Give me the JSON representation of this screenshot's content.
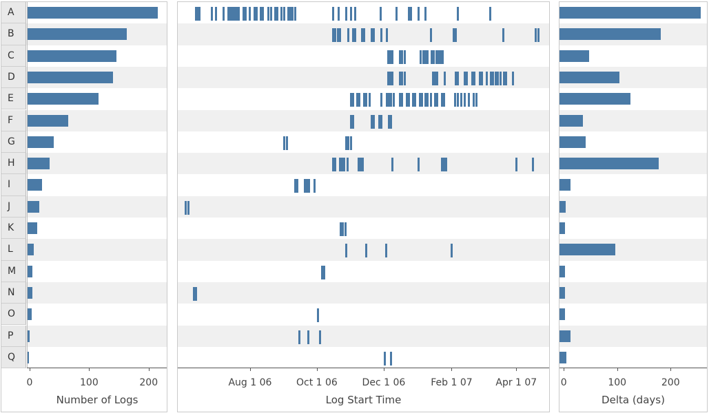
{
  "chart_data": [
    {
      "type": "bar",
      "orientation": "horizontal",
      "categories": [
        "A",
        "B",
        "C",
        "D",
        "E",
        "F",
        "G",
        "H",
        "I",
        "J",
        "K",
        "L",
        "M",
        "N",
        "O",
        "P",
        "Q"
      ],
      "values": [
        220,
        168,
        151,
        145,
        120,
        70,
        45,
        38,
        26,
        21,
        17,
        11,
        9,
        9,
        8,
        5,
        4
      ],
      "xlabel": "Number of Logs",
      "xlim": [
        0,
        235
      ],
      "ticks": [
        0,
        100,
        200
      ],
      "tick_labels": [
        "0",
        "100",
        "200"
      ]
    },
    {
      "type": "scatter",
      "mark": "tick",
      "categories": [
        "A",
        "B",
        "C",
        "D",
        "E",
        "F",
        "G",
        "H",
        "I",
        "J",
        "K",
        "L",
        "M",
        "N",
        "O",
        "P",
        "Q"
      ],
      "xlabel": "Log Start Time",
      "xlim": [
        "2006-05-27",
        "2007-05-01"
      ],
      "ticks": [
        "2006-08-01",
        "2006-10-01",
        "2006-12-01",
        "2007-02-01",
        "2007-04-01"
      ],
      "tick_labels": [
        "Aug 1 06",
        "Oct 1 06",
        "Dec 1 06",
        "Feb 1 07",
        "Apr 1 07"
      ],
      "series": [
        {
          "category": "A",
          "dates": [
            "2006-06-12",
            "2006-06-13",
            "2006-06-14",
            "2006-06-15",
            "2006-06-26",
            "2006-06-30",
            "2006-07-07",
            "2006-07-11",
            "2006-07-13",
            "2006-07-15",
            "2006-07-17",
            "2006-07-19",
            "2006-07-21",
            "2006-07-25",
            "2006-07-27",
            "2006-07-31",
            "2006-08-04",
            "2006-08-06",
            "2006-08-10",
            "2006-08-12",
            "2006-08-17",
            "2006-08-19",
            "2006-08-23",
            "2006-08-25",
            "2006-08-29",
            "2006-08-31",
            "2006-09-04",
            "2006-09-06",
            "2006-09-08",
            "2006-09-10",
            "2006-10-15",
            "2006-10-20",
            "2006-10-27",
            "2006-10-31",
            "2006-11-04",
            "2006-11-27",
            "2006-12-12",
            "2006-12-23",
            "2006-12-25",
            "2007-01-01",
            "2007-01-07",
            "2007-02-06",
            "2007-03-07"
          ]
        },
        {
          "category": "B",
          "dates": [
            "2006-10-15",
            "2006-10-17",
            "2006-10-19",
            "2006-10-21",
            "2006-10-29",
            "2006-11-02",
            "2006-11-04",
            "2006-11-10",
            "2006-11-12",
            "2006-11-19",
            "2006-11-21",
            "2006-11-28",
            "2006-12-03",
            "2007-01-12",
            "2007-02-02",
            "2007-02-04",
            "2007-03-19",
            "2007-04-18",
            "2007-04-20"
          ]
        },
        {
          "category": "C",
          "dates": [
            "2006-12-04",
            "2006-12-06",
            "2006-12-08",
            "2006-12-15",
            "2006-12-17",
            "2006-12-19",
            "2007-01-03",
            "2007-01-05",
            "2007-01-07",
            "2007-01-09",
            "2007-01-13",
            "2007-01-15",
            "2007-01-17",
            "2007-01-19",
            "2007-01-21",
            "2007-01-23"
          ]
        },
        {
          "category": "D",
          "dates": [
            "2006-12-04",
            "2006-12-06",
            "2006-12-08",
            "2006-12-15",
            "2006-12-17",
            "2006-12-19",
            "2007-01-14",
            "2007-01-16",
            "2007-01-18",
            "2007-01-25",
            "2007-02-04",
            "2007-02-06",
            "2007-02-12",
            "2007-02-14",
            "2007-02-19",
            "2007-02-21",
            "2007-02-26",
            "2007-02-28",
            "2007-03-04",
            "2007-03-08",
            "2007-03-10",
            "2007-03-12",
            "2007-03-14",
            "2007-03-17",
            "2007-03-20",
            "2007-03-22",
            "2007-03-28"
          ]
        },
        {
          "category": "E",
          "dates": [
            "2006-10-31",
            "2006-11-02",
            "2006-11-06",
            "2006-11-08",
            "2006-11-12",
            "2006-11-14",
            "2006-11-17",
            "2006-11-28",
            "2006-12-03",
            "2006-12-05",
            "2006-12-07",
            "2006-12-09",
            "2006-12-15",
            "2006-12-17",
            "2006-12-21",
            "2006-12-23",
            "2006-12-27",
            "2006-12-29",
            "2007-01-02",
            "2007-01-04",
            "2007-01-07",
            "2007-01-09",
            "2007-01-12",
            "2007-01-16",
            "2007-01-18",
            "2007-01-22",
            "2007-01-24",
            "2007-02-03",
            "2007-02-06",
            "2007-02-09",
            "2007-02-12",
            "2007-02-16",
            "2007-02-20",
            "2007-02-23"
          ]
        },
        {
          "category": "F",
          "dates": [
            "2006-10-31",
            "2006-11-02",
            "2006-11-19",
            "2006-11-21",
            "2006-11-26",
            "2006-11-28",
            "2006-12-05",
            "2006-12-07"
          ]
        },
        {
          "category": "G",
          "dates": [
            "2006-08-31",
            "2006-09-03",
            "2006-10-27",
            "2006-10-29",
            "2006-10-31"
          ]
        },
        {
          "category": "H",
          "dates": [
            "2006-10-15",
            "2006-10-17",
            "2006-10-21",
            "2006-10-23",
            "2006-10-25",
            "2006-10-28",
            "2006-11-07",
            "2006-11-09",
            "2006-11-11",
            "2006-12-08",
            "2007-01-01",
            "2007-01-22",
            "2007-01-24",
            "2007-01-26",
            "2007-03-31",
            "2007-04-15"
          ]
        },
        {
          "category": "I",
          "dates": [
            "2006-09-10",
            "2006-09-12",
            "2006-09-19",
            "2006-09-21",
            "2006-09-23",
            "2006-09-28"
          ]
        },
        {
          "category": "J",
          "dates": [
            "2006-06-02",
            "2006-06-05"
          ]
        },
        {
          "category": "K",
          "dates": [
            "2006-10-22",
            "2006-10-24",
            "2006-10-26"
          ]
        },
        {
          "category": "L",
          "dates": [
            "2006-10-27",
            "2006-11-14",
            "2006-12-02",
            "2007-01-31"
          ]
        },
        {
          "category": "M",
          "dates": [
            "2006-10-05",
            "2006-10-07"
          ]
        },
        {
          "category": "N",
          "dates": [
            "2006-06-10",
            "2006-06-12"
          ]
        },
        {
          "category": "O",
          "dates": [
            "2006-10-01"
          ]
        },
        {
          "category": "P",
          "dates": [
            "2006-09-14",
            "2006-09-22",
            "2006-10-03"
          ]
        },
        {
          "category": "Q",
          "dates": [
            "2006-12-01",
            "2006-12-07"
          ]
        }
      ]
    },
    {
      "type": "bar",
      "orientation": "horizontal",
      "categories": [
        "A",
        "B",
        "C",
        "D",
        "E",
        "F",
        "G",
        "H",
        "I",
        "J",
        "K",
        "L",
        "M",
        "N",
        "O",
        "P",
        "Q"
      ],
      "values": [
        255,
        180,
        47,
        103,
        124,
        35,
        40,
        177,
        12,
        3,
        1,
        95,
        1,
        1,
        1,
        12,
        4
      ],
      "xlabel": "Delta (days)",
      "xlim": [
        -8,
        268
      ],
      "ticks": [
        0,
        100,
        200
      ],
      "tick_labels": [
        "0",
        "100",
        "200"
      ]
    }
  ],
  "colors": {
    "bar": "#4a7aa6",
    "alt_row": "#f0f0f0"
  }
}
